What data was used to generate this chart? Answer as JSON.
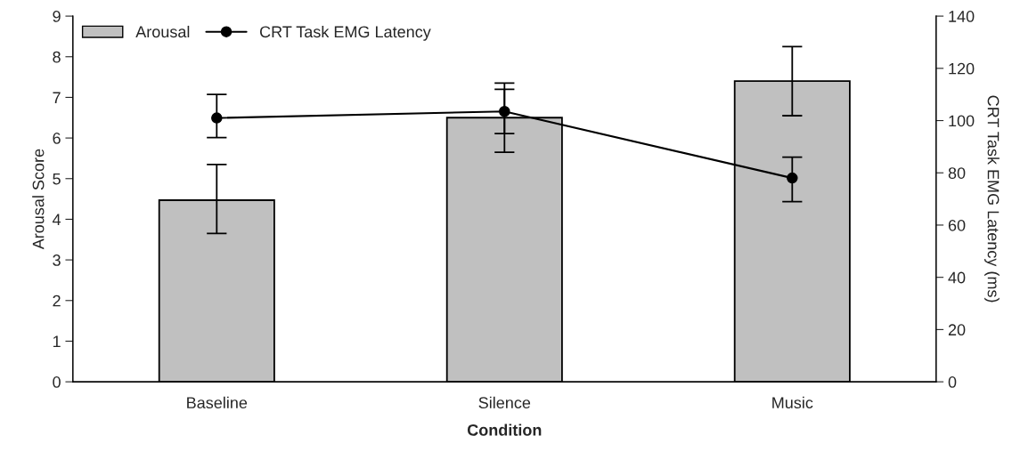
{
  "chart_data": {
    "type": "bar",
    "xlabel": "Condition",
    "ylabel": "Arousal Score",
    "y2label": "CRT Task EMG Latency (ms)",
    "categories": [
      "Baseline",
      "Silence",
      "Music"
    ],
    "series": [
      {
        "name": "Arousal",
        "color": "#c0c0c0",
        "values": [
          4.47,
          6.5,
          7.4
        ],
        "errors": [
          [
            3.65,
            5.35
          ],
          [
            5.65,
            7.35
          ],
          [
            6.55,
            8.25
          ]
        ]
      },
      {
        "name": "CRT Task EMG Latency",
        "type": "line",
        "axis": "y2",
        "color": "#000000",
        "marker": "circle",
        "values": [
          101,
          103.5,
          78
        ],
        "errors": [
          [
            93.5,
            110
          ],
          [
            95,
            112
          ],
          [
            69,
            86
          ]
        ]
      }
    ],
    "ylim": [
      0,
      9
    ],
    "yticks": [
      0,
      1,
      2,
      3,
      4,
      5,
      6,
      7,
      8,
      9
    ],
    "y2lim": [
      0,
      140
    ],
    "y2ticks": [
      0,
      20,
      40,
      60,
      80,
      100,
      120,
      140
    ],
    "legend": "top left",
    "grid": false
  }
}
